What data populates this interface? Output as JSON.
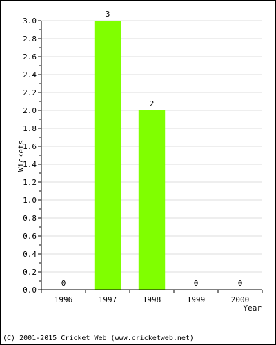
{
  "chart_data": {
    "type": "bar",
    "categories": [
      "1996",
      "1997",
      "1998",
      "1999",
      "2000"
    ],
    "values": [
      0,
      3,
      2,
      0,
      0
    ],
    "data_labels": [
      "0",
      "3",
      "2",
      "0",
      "0"
    ],
    "title": "",
    "xlabel": "Year",
    "ylabel": "Wickets",
    "ylim": [
      0,
      3.0
    ],
    "yticks": [
      "0.0",
      "0.2",
      "0.4",
      "0.6",
      "0.8",
      "1.0",
      "1.2",
      "1.4",
      "1.6",
      "1.8",
      "2.0",
      "2.2",
      "2.4",
      "2.6",
      "2.8",
      "3.0"
    ],
    "grid": true,
    "legend": "none",
    "bar_color": "#80ff00",
    "zero_label_color": "#0000cc",
    "label_color": "#000000"
  },
  "footer": {
    "copyright": "(C) 2001-2015 Cricket Web (www.cricketweb.net)"
  }
}
